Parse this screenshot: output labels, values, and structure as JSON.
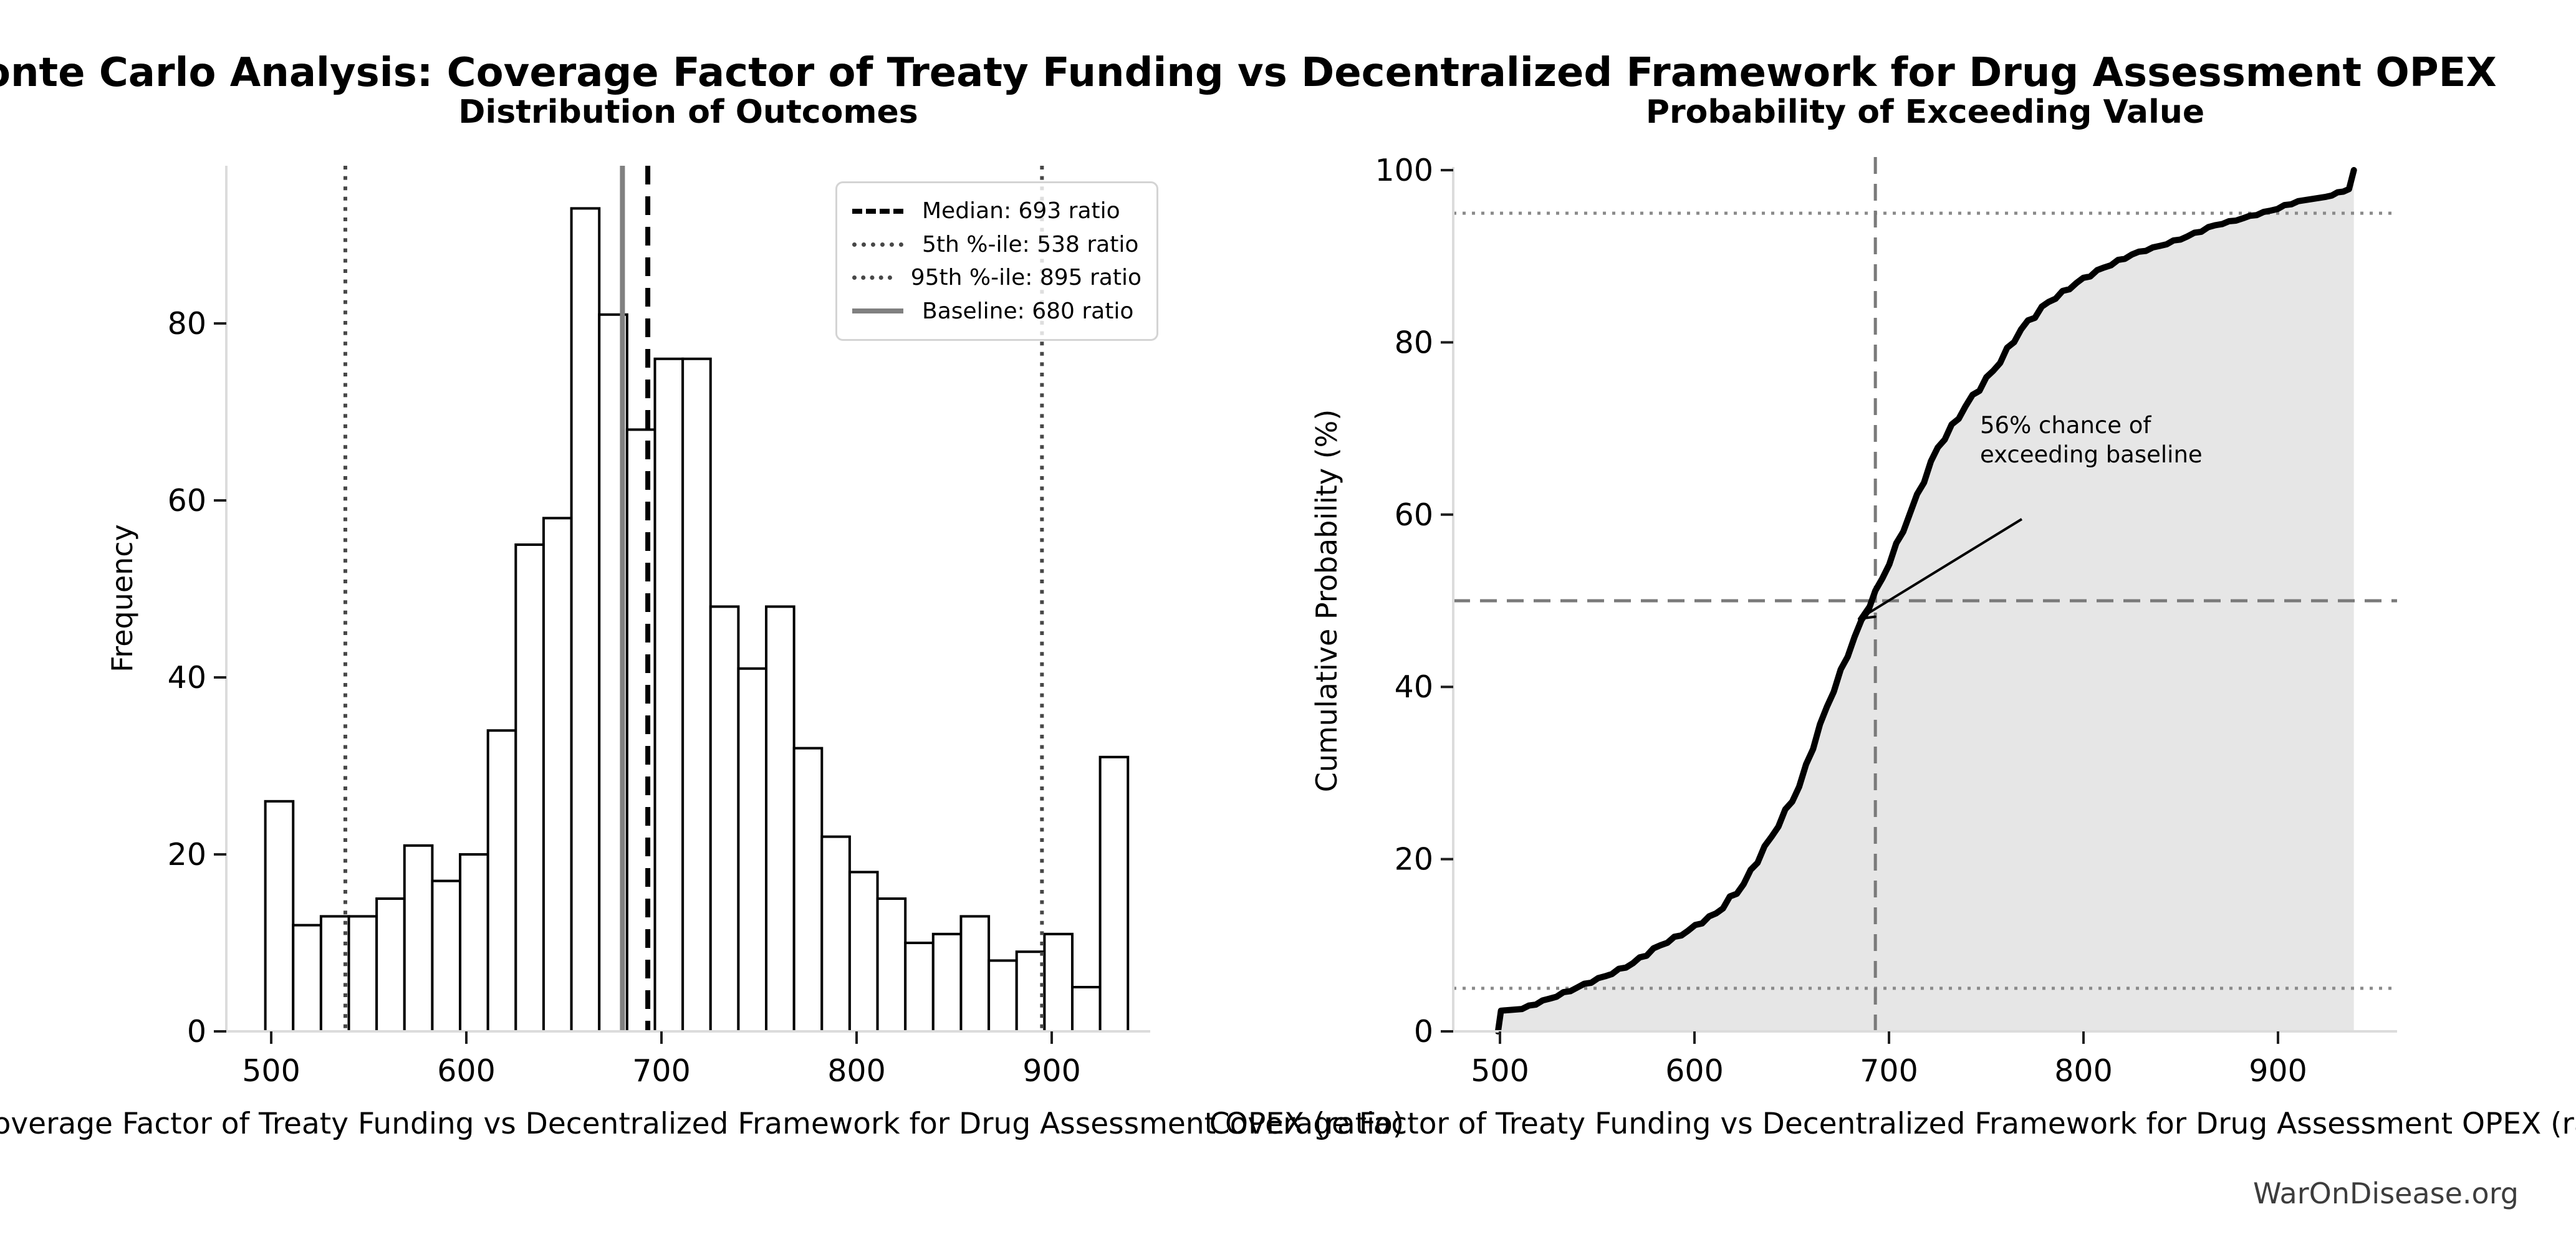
{
  "page": {
    "title": "Monte Carlo Analysis: Coverage Factor of Treaty Funding vs Decentralized Framework for Drug Assessment OPEX",
    "watermark": "WarOnDisease.org",
    "background": "#ffffff"
  },
  "colors": {
    "bar_fill": "#ffffff",
    "bar_edge": "#000000",
    "median_line": "#000000",
    "percentile_line": "#474747",
    "baseline_line": "#808080",
    "cdf_line": "#000000",
    "cdf_fill": "#e6e6e6",
    "guide_gray": "#7a7a7a",
    "dotted_gray": "#8a8a8a",
    "spine": "#dcdcdc",
    "tick": "#1f1f1f"
  },
  "chart_data": [
    {
      "type": "bar",
      "subtype": "histogram",
      "title": "Distribution of Outcomes",
      "xlabel": "Coverage Factor of Treaty Funding vs Decentralized Framework for Drug Assessment OPEX (ratio)",
      "ylabel": "Frequency",
      "bin_start": 497,
      "bin_width": 14.26,
      "values": [
        26,
        12,
        13,
        13,
        15,
        21,
        17,
        20,
        34,
        55,
        58,
        93,
        81,
        68,
        76,
        76,
        48,
        41,
        48,
        32,
        22,
        18,
        15,
        10,
        11,
        13,
        8,
        9,
        11,
        5,
        31
      ],
      "xticks": [
        500,
        600,
        700,
        800,
        900
      ],
      "yticks": [
        0,
        20,
        40,
        60,
        80
      ],
      "xlim": [
        479,
        951
      ],
      "ylim": [
        0,
        97.7
      ],
      "grid": false,
      "legend_position": "upper right",
      "legend": [
        {
          "label": "Median: 693 ratio",
          "x": 693,
          "line": "dashed",
          "color": "#000000"
        },
        {
          "label": "5th %-ile: 538 ratio",
          "x": 538,
          "line": "dotted",
          "color": "#474747"
        },
        {
          "label": "95th %-ile: 895 ratio",
          "x": 895,
          "line": "dotted",
          "color": "#474747"
        },
        {
          "label": "Baseline: 680 ratio",
          "x": 680,
          "line": "solid",
          "color": "#808080"
        }
      ]
    },
    {
      "type": "line",
      "subtype": "empirical-cdf",
      "title": "Probability of Exceeding Value",
      "xlabel": "Coverage Factor of Treaty Funding vs Decentralized Framework for Drug Assessment OPEX (ratio)",
      "ylabel": "Cumulative Probability (%)",
      "xticks": [
        500,
        600,
        700,
        800,
        900
      ],
      "yticks": [
        0,
        20,
        40,
        60,
        80,
        100
      ],
      "xlim": [
        476,
        958
      ],
      "ylim": [
        0,
        100
      ],
      "x": [
        499,
        500.5,
        511.3,
        525.5,
        539.8,
        554.0,
        568.3,
        582.5,
        596.8,
        611.1,
        625.3,
        639.6,
        653.8,
        668.1,
        682.3,
        696.6,
        710.9,
        725.1,
        739.4,
        753.6,
        767.9,
        782.1,
        796.4,
        810.6,
        824.9,
        839.2,
        853.4,
        867.7,
        881.9,
        896.2,
        910.4,
        924.7,
        936.5,
        939.0
      ],
      "y": [
        0,
        2.4,
        2.6,
        3.8,
        5.1,
        6.4,
        7.9,
        10.0,
        11.7,
        13.7,
        17.1,
        22.6,
        28.4,
        37.7,
        45.8,
        52.6,
        60.2,
        67.8,
        72.6,
        76.7,
        81.5,
        84.7,
        86.9,
        88.7,
        90.2,
        91.2,
        92.3,
        93.6,
        94.4,
        95.3,
        96.4,
        96.9,
        97.8,
        100
      ],
      "guides": {
        "vline_x": 693,
        "hline_y": 50,
        "dotted_levels": [
          5,
          95
        ]
      },
      "annotation": {
        "lines": [
          "56% chance of",
          "exceeding baseline"
        ],
        "arrow_point": [
          684.6,
          47.9
        ],
        "text_pos": [
          746,
          69
        ]
      }
    }
  ]
}
